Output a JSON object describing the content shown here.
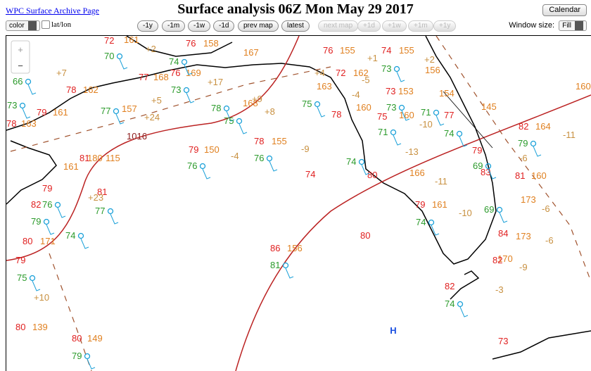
{
  "header": {
    "link": "WPC Surface Archive Page",
    "title": "Surface analysis 06Z Mon May 29 2017",
    "calendar": "Calendar"
  },
  "toolbar": {
    "color": "color",
    "latlon": "lat/lon",
    "nav": [
      {
        "label": "-1y",
        "enabled": true
      },
      {
        "label": "-1m",
        "enabled": true
      },
      {
        "label": "-1w",
        "enabled": true
      },
      {
        "label": "-1d",
        "enabled": true
      },
      {
        "label": "prev map",
        "enabled": true
      },
      {
        "label": "latest",
        "enabled": true
      },
      {
        "label": "next map",
        "enabled": false
      },
      {
        "label": "+1d",
        "enabled": false
      },
      {
        "label": "+1w",
        "enabled": false
      },
      {
        "label": "+1m",
        "enabled": false
      },
      {
        "label": "+1y",
        "enabled": false
      }
    ],
    "window_label": "Window size:",
    "window_value": "Fill"
  },
  "map": {
    "zoom_in": "+",
    "zoom_out": "−",
    "high": "H",
    "isobar": "1016",
    "temperatures": [
      "72",
      "76",
      "77",
      "76",
      "78",
      "79",
      "78",
      "81",
      "79",
      "78",
      "74",
      "76",
      "74",
      "72",
      "73",
      "78",
      "75",
      "77",
      "82",
      "79",
      "83",
      "81",
      "80",
      "79",
      "84",
      "82",
      "82",
      "80",
      "86",
      "80",
      "79",
      "80",
      "80",
      "73",
      "81",
      "82",
      "79"
    ],
    "dewpoints": [
      "70",
      "74",
      "73",
      "78",
      "75",
      "75",
      "73",
      "73",
      "71",
      "74",
      "71",
      "74",
      "76",
      "76",
      "77",
      "73",
      "77",
      "74",
      "75",
      "79",
      "76",
      "81",
      "74",
      "69",
      "79",
      "69",
      "66",
      "79",
      "74"
    ],
    "pressures": [
      "161",
      "158",
      "167",
      "169",
      "168",
      "162",
      "161",
      "157",
      "163",
      "161",
      "180",
      "115",
      "150",
      "155",
      "155",
      "155",
      "156",
      "162",
      "163",
      "153",
      "154",
      "160",
      "160",
      "145",
      "164",
      "166",
      "161",
      "173",
      "170",
      "156",
      "171",
      "139",
      "149",
      "160",
      "173",
      "168",
      "160"
    ],
    "tendencies": [
      "+2",
      "+1",
      "+7",
      "+5",
      "+24",
      "+17",
      "+9",
      "+8",
      "-4",
      "-9",
      "-5",
      "-4",
      "-10",
      "-13",
      "-11",
      "-10",
      "-9",
      "-6",
      "-6",
      "-11",
      "-6",
      "+10",
      "+2",
      "-3",
      "+23",
      "+4"
    ]
  }
}
